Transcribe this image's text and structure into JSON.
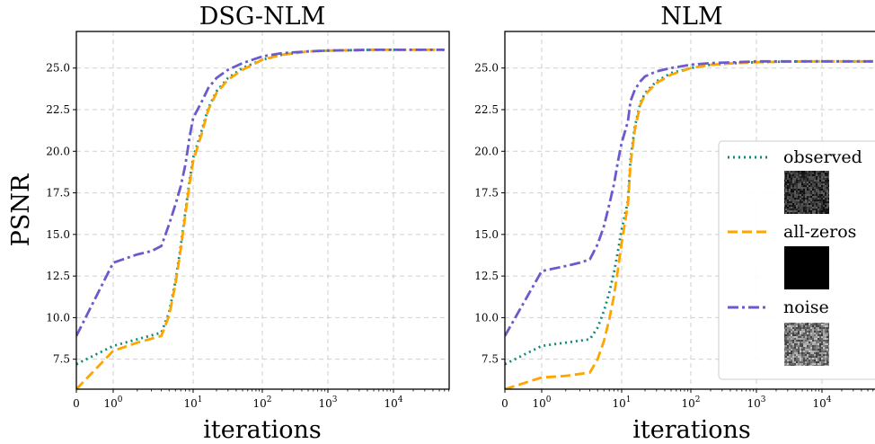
{
  "chart_data": [
    {
      "type": "line",
      "title": "DSG-NLM",
      "xlabel": "iterations",
      "ylabel": "PSNR",
      "xscale": "symlog",
      "xlim": [
        0,
        60000
      ],
      "ylim": [
        5.7,
        27.2
      ],
      "yticks": [
        "7.5",
        "10.0",
        "12.5",
        "15.0",
        "17.5",
        "20.0",
        "22.5",
        "25.0"
      ],
      "xticks": [
        {
          "base": "0",
          "exp": ""
        },
        {
          "base": "10",
          "exp": "0"
        },
        {
          "base": "10",
          "exp": "1"
        },
        {
          "base": "10",
          "exp": "2"
        },
        {
          "base": "10",
          "exp": "3"
        },
        {
          "base": "10",
          "exp": "4"
        }
      ],
      "grid": true,
      "series": [
        {
          "name": "observed",
          "color": "#108a7a",
          "style": "dotted",
          "x": [
            0,
            1,
            2,
            4,
            5,
            6,
            7,
            8,
            9,
            10,
            12,
            15,
            20,
            30,
            50,
            100,
            200,
            500,
            1000,
            5000,
            60000
          ],
          "y": [
            7.2,
            8.3,
            8.7,
            9.1,
            10.3,
            12.2,
            14.3,
            16.4,
            18.2,
            19.6,
            21.3,
            22.6,
            23.6,
            24.4,
            25.0,
            25.5,
            25.8,
            26.0,
            26.05,
            26.1,
            26.1
          ]
        },
        {
          "name": "all-zeros",
          "color": "#ffa500",
          "style": "dashed",
          "x": [
            0,
            1,
            2,
            4,
            5,
            6,
            7,
            8,
            9,
            10,
            12,
            15,
            20,
            30,
            50,
            100,
            200,
            500,
            1000,
            5000,
            60000
          ],
          "y": [
            5.7,
            8.0,
            8.5,
            8.9,
            10.1,
            12.0,
            14.1,
            16.2,
            18.0,
            19.4,
            21.1,
            22.5,
            23.5,
            24.3,
            24.9,
            25.5,
            25.8,
            26.0,
            26.05,
            26.1,
            26.1
          ]
        },
        {
          "name": "noise",
          "color": "#6a5acd",
          "style": "dashdot",
          "x": [
            0,
            1,
            2,
            3,
            4,
            5,
            6,
            7,
            8,
            9,
            10,
            12,
            15,
            20,
            30,
            50,
            100,
            200,
            500,
            1000,
            5000,
            60000
          ],
          "y": [
            8.9,
            13.3,
            13.8,
            14.0,
            14.3,
            15.6,
            16.8,
            17.9,
            19.2,
            20.8,
            22.0,
            23.0,
            23.8,
            24.4,
            24.9,
            25.3,
            25.7,
            25.9,
            26.0,
            26.05,
            26.1,
            26.1
          ]
        }
      ]
    },
    {
      "type": "line",
      "title": "NLM",
      "xlabel": "iterations",
      "ylabel": "",
      "xscale": "symlog",
      "xlim": [
        0,
        60000
      ],
      "ylim": [
        5.7,
        27.2
      ],
      "yticks": [
        "7.5",
        "10.0",
        "12.5",
        "15.0",
        "17.5",
        "20.0",
        "22.5",
        "25.0"
      ],
      "xticks": [
        {
          "base": "0",
          "exp": ""
        },
        {
          "base": "10",
          "exp": "0"
        },
        {
          "base": "10",
          "exp": "1"
        },
        {
          "base": "10",
          "exp": "2"
        },
        {
          "base": "10",
          "exp": "3"
        },
        {
          "base": "10",
          "exp": "4"
        }
      ],
      "grid": true,
      "legend": {
        "placement": "center-right",
        "entries": [
          {
            "label": "observed",
            "thumbnail": "noisy-image"
          },
          {
            "label": "all-zeros",
            "thumbnail": "black-image"
          },
          {
            "label": "noise",
            "thumbnail": "gray-noise-image"
          }
        ]
      },
      "series": [
        {
          "name": "observed",
          "color": "#108a7a",
          "style": "dotted",
          "x": [
            0,
            1,
            2,
            4,
            5,
            6,
            7,
            8,
            9,
            10,
            11,
            12,
            14,
            17,
            20,
            30,
            50,
            100,
            200,
            500,
            1000,
            5000,
            60000
          ],
          "y": [
            7.2,
            8.3,
            8.5,
            8.7,
            9.4,
            10.4,
            11.5,
            12.7,
            14.0,
            15.3,
            17.0,
            19.5,
            21.5,
            22.9,
            23.5,
            24.2,
            24.7,
            25.0,
            25.2,
            25.3,
            25.35,
            25.4,
            25.4
          ]
        },
        {
          "name": "all-zeros",
          "color": "#ffa500",
          "style": "dashed",
          "x": [
            0,
            1,
            2,
            4,
            5,
            6,
            7,
            8,
            9,
            10,
            11,
            12,
            14,
            17,
            20,
            30,
            50,
            100,
            200,
            500,
            1000,
            5000,
            60000
          ],
          "y": [
            5.7,
            6.4,
            6.5,
            6.7,
            7.5,
            8.6,
            9.9,
            11.3,
            12.9,
            14.5,
            16.8,
            19.2,
            21.3,
            22.8,
            23.4,
            24.1,
            24.6,
            25.0,
            25.2,
            25.3,
            25.35,
            25.4,
            25.4
          ]
        },
        {
          "name": "noise",
          "color": "#6a5acd",
          "style": "dashdot",
          "x": [
            0,
            1,
            2,
            3,
            4,
            5,
            6,
            7,
            8,
            9,
            10,
            11,
            12,
            14,
            17,
            20,
            30,
            50,
            100,
            200,
            500,
            1000,
            5000,
            60000
          ],
          "y": [
            8.9,
            12.8,
            13.1,
            13.3,
            13.5,
            14.4,
            15.5,
            16.8,
            18.0,
            19.4,
            20.5,
            21.8,
            23.0,
            23.7,
            24.2,
            24.5,
            24.8,
            25.0,
            25.2,
            25.3,
            25.35,
            25.4,
            25.4,
            25.4
          ]
        }
      ]
    }
  ]
}
